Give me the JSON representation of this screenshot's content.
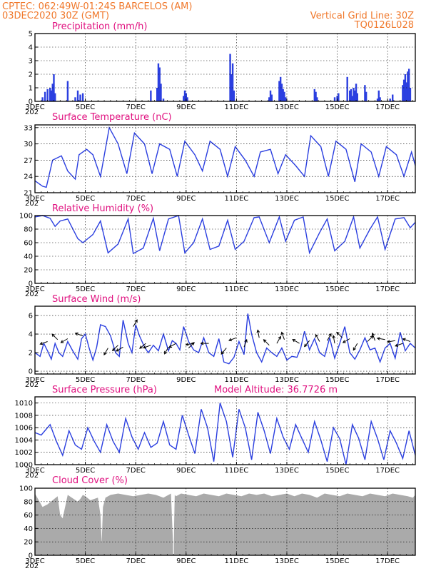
{
  "header": {
    "line1": "CPTEC:   062:49W-01:24S   BARCELOS (AM)",
    "line2_left": "03DEC2020 30Z (GMT)",
    "line2_right": "Vertical Grid Line: 30Z",
    "model_code": "TQ0126L028"
  },
  "colors": {
    "header": "#f0782b",
    "title": "#e0107f",
    "series": "#2b3fe0",
    "cloud": "#aaaaaa"
  },
  "x_ticks": [
    "3DEC",
    "5DEC",
    "7DEC",
    "9DEC",
    "11DEC",
    "13DEC",
    "15DEC",
    "17DEC"
  ],
  "x_tick_days": [
    3,
    5,
    7,
    9,
    11,
    13,
    15,
    17
  ],
  "year_glyph": "202",
  "chart_data": [
    {
      "id": "precip",
      "type": "bar",
      "title": "Precipitation (mm/h)",
      "xlim": [
        3,
        18.1
      ],
      "ylim": [
        0,
        5
      ],
      "yticks": [
        0,
        1,
        2,
        3,
        4,
        5
      ],
      "x": [
        3.3,
        3.4,
        3.5,
        3.6,
        3.65,
        3.7,
        3.75,
        3.8,
        4.3,
        4.6,
        4.7,
        4.8,
        4.9,
        7.6,
        7.85,
        7.9,
        7.95,
        8.0,
        8.1,
        8.9,
        8.95,
        9.0,
        9.05,
        10.75,
        10.8,
        10.85,
        10.9,
        12.3,
        12.35,
        12.4,
        12.7,
        12.75,
        12.8,
        12.85,
        12.9,
        12.95,
        14.1,
        14.15,
        14.2,
        14.9,
        15.0,
        15.05,
        15.4,
        15.5,
        15.55,
        15.6,
        15.65,
        15.7,
        15.75,
        15.8,
        16.1,
        16.15,
        16.6,
        16.65,
        16.7,
        17.1,
        17.2,
        17.6,
        17.65,
        17.7,
        17.75,
        17.8,
        17.85,
        17.9
      ],
      "values": [
        0.3,
        0.7,
        0.9,
        1.0,
        0.8,
        1.3,
        2.0,
        0.6,
        1.5,
        0.3,
        0.8,
        0.5,
        0.6,
        0.8,
        1.0,
        2.8,
        2.5,
        1.3,
        0.2,
        0.4,
        0.8,
        0.6,
        0.3,
        3.5,
        2.0,
        2.8,
        0.8,
        0.3,
        0.8,
        0.5,
        1.5,
        1.8,
        1.3,
        0.9,
        0.7,
        0.3,
        0.9,
        0.7,
        0.3,
        0.3,
        0.4,
        0.6,
        1.8,
        0.8,
        0.9,
        0.4,
        1.0,
        0.8,
        1.3,
        0.6,
        1.2,
        0.7,
        0.2,
        0.8,
        0.3,
        0.2,
        0.5,
        1.2,
        1.6,
        2.0,
        1.4,
        2.2,
        2.4,
        1.0
      ]
    },
    {
      "id": "temp",
      "type": "line",
      "title": "Surface Temperature (nC)",
      "xlim": [
        3,
        18.1
      ],
      "ylim": [
        21,
        33.5
      ],
      "yticks": [
        21,
        24,
        27,
        30,
        33
      ],
      "x": [
        3.0,
        3.3,
        3.45,
        3.7,
        4.05,
        4.3,
        4.6,
        4.75,
        5.05,
        5.3,
        5.6,
        5.95,
        6.3,
        6.65,
        6.95,
        7.35,
        7.65,
        7.95,
        8.35,
        8.65,
        8.95,
        9.35,
        9.65,
        9.95,
        10.35,
        10.65,
        10.95,
        11.35,
        11.7,
        11.95,
        12.35,
        12.65,
        12.95,
        13.35,
        13.7,
        13.95,
        14.35,
        14.65,
        14.95,
        15.35,
        15.7,
        15.95,
        16.35,
        16.65,
        16.95,
        17.35,
        17.65,
        17.95,
        18.1
      ],
      "values": [
        23.2,
        22.2,
        22.0,
        27.0,
        27.8,
        25.0,
        23.5,
        28.0,
        29.0,
        28.0,
        24.0,
        33.0,
        30.0,
        24.5,
        32.0,
        30.0,
        24.5,
        30.0,
        29.0,
        24.0,
        30.5,
        28.0,
        25.0,
        30.5,
        29.0,
        24.0,
        29.5,
        27.0,
        24.0,
        28.5,
        29.0,
        24.5,
        28.0,
        26.0,
        24.0,
        31.5,
        29.5,
        24.0,
        30.5,
        29.0,
        23.0,
        30.0,
        28.5,
        24.0,
        29.5,
        28.0,
        24.0,
        28.5,
        26.0
      ]
    },
    {
      "id": "rh",
      "type": "line",
      "title": "Relative Humidity (%)",
      "xlim": [
        3,
        18.1
      ],
      "ylim": [
        0,
        100
      ],
      "yticks": [
        0,
        20,
        40,
        60,
        80,
        100
      ],
      "x": [
        3.0,
        3.3,
        3.6,
        3.8,
        4.0,
        4.3,
        4.7,
        4.9,
        5.3,
        5.6,
        5.9,
        6.3,
        6.7,
        6.9,
        7.3,
        7.7,
        7.95,
        8.3,
        8.7,
        8.95,
        9.3,
        9.65,
        9.95,
        10.3,
        10.65,
        10.95,
        11.3,
        11.7,
        11.9,
        12.3,
        12.7,
        12.95,
        13.3,
        13.65,
        13.9,
        14.3,
        14.6,
        14.9,
        15.3,
        15.65,
        15.9,
        16.3,
        16.6,
        16.9,
        17.3,
        17.65,
        17.9,
        18.1
      ],
      "values": [
        98,
        100,
        96,
        84,
        92,
        95,
        66,
        60,
        72,
        92,
        45,
        58,
        95,
        44,
        52,
        96,
        48,
        95,
        100,
        45,
        60,
        95,
        50,
        55,
        93,
        50,
        62,
        97,
        98,
        60,
        98,
        62,
        93,
        98,
        45,
        75,
        95,
        48,
        62,
        98,
        52,
        80,
        98,
        50,
        95,
        97,
        82,
        90
      ]
    },
    {
      "id": "wind",
      "type": "line",
      "title": "Surface Wind (m/s)",
      "xlim": [
        3,
        18.1
      ],
      "ylim": [
        -0.3,
        7
      ],
      "yticks": [
        0,
        2,
        4,
        6
      ],
      "x": [
        3.0,
        3.2,
        3.35,
        3.5,
        3.65,
        3.8,
        3.95,
        4.1,
        4.3,
        4.5,
        4.7,
        4.85,
        5.0,
        5.15,
        5.3,
        5.45,
        5.6,
        5.8,
        6.0,
        6.2,
        6.35,
        6.5,
        6.7,
        6.85,
        7.0,
        7.15,
        7.35,
        7.5,
        7.7,
        7.9,
        8.1,
        8.3,
        8.45,
        8.6,
        8.75,
        8.9,
        9.1,
        9.3,
        9.5,
        9.7,
        9.9,
        10.1,
        10.3,
        10.5,
        10.7,
        10.9,
        11.1,
        11.3,
        11.45,
        11.6,
        11.8,
        12.0,
        12.2,
        12.4,
        12.6,
        12.8,
        13.0,
        13.2,
        13.4,
        13.55,
        13.7,
        13.9,
        14.1,
        14.3,
        14.5,
        14.7,
        14.9,
        15.1,
        15.3,
        15.5,
        15.7,
        15.9,
        16.1,
        16.3,
        16.5,
        16.7,
        16.9,
        17.1,
        17.3,
        17.5,
        17.7,
        17.9,
        18.1
      ],
      "values": [
        2.0,
        1.6,
        3.0,
        2.2,
        1.3,
        3.0,
        2.0,
        1.6,
        3.2,
        2.2,
        1.3,
        3.5,
        4.0,
        2.5,
        1.2,
        2.6,
        5.0,
        4.8,
        3.8,
        2.0,
        1.6,
        5.5,
        3.0,
        2.0,
        5.0,
        3.8,
        2.6,
        2.0,
        2.8,
        2.2,
        4.0,
        2.2,
        3.3,
        3.0,
        2.3,
        4.8,
        3.2,
        2.3,
        2.0,
        3.6,
        2.0,
        1.6,
        3.5,
        1.0,
        0.8,
        1.5,
        3.2,
        1.8,
        6.2,
        4.0,
        2.0,
        1.0,
        2.5,
        2.0,
        1.6,
        2.5,
        1.2,
        1.6,
        1.5,
        2.5,
        4.3,
        2.3,
        3.5,
        2.0,
        1.6,
        3.6,
        1.4,
        3.0,
        4.8,
        2.0,
        1.3,
        2.3,
        3.6,
        2.3,
        2.5,
        1.0,
        2.5,
        3.0,
        1.4,
        4.2,
        2.2,
        3.0,
        2.5
      ],
      "arrows_x": [
        3.5,
        3.9,
        4.3,
        4.9,
        5.9,
        6.3,
        6.5,
        6.9,
        7.4,
        7.6,
        8.3,
        8.6,
        9.1,
        9.3,
        9.9,
        10.6,
        11.0,
        11.3,
        11.9,
        12.3,
        12.6,
        12.9,
        13.5,
        13.9,
        14.3,
        14.6,
        14.9,
        15.2,
        15.5,
        15.8,
        16.2,
        16.5,
        16.9,
        17.3,
        17.6,
        17.9
      ],
      "arrows_y": [
        3.2,
        3.4,
        3.5,
        3.8,
        2.5,
        2.8,
        2.6,
        4.8,
        3.0,
        2.8,
        2.6,
        3.0,
        2.5,
        3.0,
        3.0,
        2.5,
        3.6,
        2.6,
        3.6,
        2.8,
        3.0,
        3.4,
        3.0,
        3.3,
        3.2,
        3.3,
        3.0,
        3.6,
        3.5,
        3.0,
        3.2,
        3.3,
        3.4,
        3.3,
        3.0,
        3.2
      ],
      "arrows_dir_deg": [
        200,
        135,
        210,
        160,
        240,
        225,
        210,
        60,
        220,
        200,
        240,
        210,
        45,
        190,
        180,
        230,
        200,
        70,
        100,
        135,
        60,
        110,
        150,
        230,
        120,
        60,
        100,
        135,
        210,
        240,
        45,
        110,
        170,
        190,
        200,
        160
      ]
    },
    {
      "id": "pressure",
      "type": "line",
      "title": "Surface Pressure (hPa)",
      "annotation": "Model Altitude: 36.7726 m",
      "xlim": [
        3,
        18.1
      ],
      "ylim": [
        1000,
        1011
      ],
      "yticks": [
        1000,
        1002,
        1004,
        1006,
        1008,
        1010
      ],
      "x": [
        3.0,
        3.25,
        3.6,
        3.85,
        4.1,
        4.35,
        4.6,
        4.85,
        5.1,
        5.35,
        5.6,
        5.85,
        6.1,
        6.35,
        6.6,
        6.85,
        7.1,
        7.35,
        7.6,
        7.85,
        8.1,
        8.35,
        8.6,
        8.85,
        9.1,
        9.35,
        9.6,
        9.85,
        10.1,
        10.35,
        10.6,
        10.85,
        11.1,
        11.35,
        11.6,
        11.85,
        12.1,
        12.35,
        12.6,
        12.85,
        13.1,
        13.35,
        13.6,
        13.85,
        14.1,
        14.35,
        14.6,
        14.85,
        15.1,
        15.35,
        15.6,
        15.85,
        16.1,
        16.35,
        16.6,
        16.85,
        17.1,
        17.35,
        17.6,
        17.85,
        18.1
      ],
      "values": [
        1005.2,
        1004.8,
        1006.5,
        1003.8,
        1001.5,
        1005.5,
        1003.2,
        1002.5,
        1006.0,
        1003.8,
        1002.0,
        1006.5,
        1003.8,
        1002.0,
        1007.5,
        1004.5,
        1002.5,
        1005.2,
        1002.8,
        1003.5,
        1007.0,
        1003.2,
        1002.5,
        1008.0,
        1004.8,
        1001.8,
        1009.0,
        1006.0,
        1000.5,
        1010.0,
        1007.0,
        1001.2,
        1009.0,
        1006.0,
        1000.8,
        1008.5,
        1005.5,
        1001.8,
        1007.5,
        1004.5,
        1002.5,
        1006.5,
        1004.2,
        1002.0,
        1007.0,
        1004.0,
        1000.5,
        1006.0,
        1004.2,
        1000.0,
        1006.5,
        1004.3,
        1000.8,
        1007.0,
        1004.2,
        1000.8,
        1005.5,
        1003.5,
        1001.0,
        1005.5,
        1001.5
      ]
    },
    {
      "id": "cloud",
      "type": "area",
      "title": "Cloud Cover (%)",
      "xlim": [
        3,
        18.1
      ],
      "ylim": [
        0,
        100
      ],
      "yticks": [
        0,
        20,
        40,
        60,
        80,
        100
      ],
      "x": [
        3.0,
        3.15,
        3.3,
        3.5,
        3.7,
        3.9,
        4.0,
        4.1,
        4.3,
        4.5,
        4.7,
        4.8,
        4.9,
        5.0,
        5.2,
        5.5,
        5.6,
        5.65,
        5.7,
        5.8,
        6.0,
        6.3,
        6.6,
        6.9,
        7.2,
        7.5,
        7.8,
        8.1,
        8.4,
        8.5,
        8.55,
        8.6,
        8.8,
        9.1,
        9.4,
        9.7,
        10.0,
        10.3,
        10.6,
        10.9,
        11.2,
        11.5,
        11.8,
        12.1,
        12.4,
        12.7,
        13.0,
        13.3,
        13.6,
        13.9,
        14.2,
        14.5,
        14.8,
        15.1,
        15.4,
        15.7,
        16.0,
        16.3,
        16.6,
        16.9,
        17.2,
        17.5,
        17.8,
        18.0,
        18.1
      ],
      "values": [
        92,
        82,
        72,
        76,
        82,
        88,
        60,
        55,
        90,
        85,
        80,
        84,
        90,
        88,
        82,
        86,
        60,
        18,
        72,
        86,
        90,
        92,
        90,
        88,
        90,
        92,
        90,
        86,
        92,
        2,
        90,
        88,
        92,
        90,
        88,
        92,
        90,
        88,
        92,
        90,
        88,
        92,
        90,
        92,
        88,
        90,
        92,
        88,
        92,
        90,
        86,
        92,
        90,
        88,
        92,
        90,
        88,
        92,
        90,
        88,
        92,
        90,
        88,
        86,
        90
      ]
    }
  ]
}
